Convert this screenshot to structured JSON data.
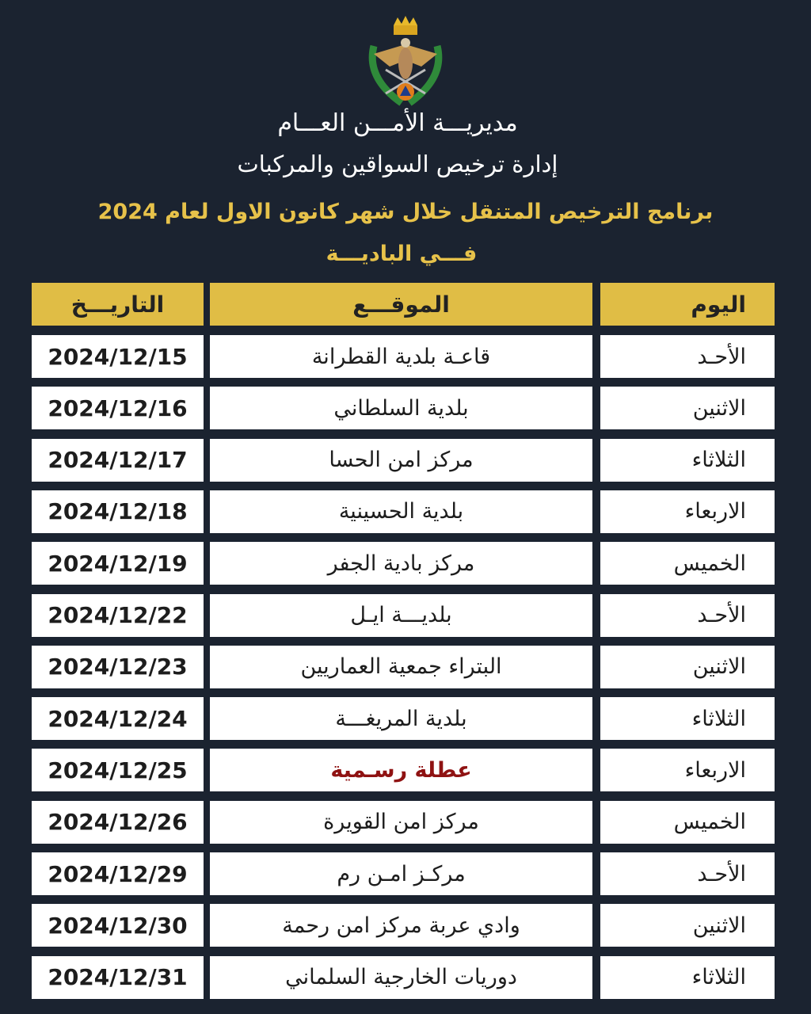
{
  "header": {
    "org": "مديريـــة الأمـــن العـــام",
    "department": "إدارة ترخيص السواقين والمركبات",
    "title": "برنامج الترخيص المتنقل خلال شهر  كانون الاول لعام 2024",
    "subtitle": "فـــي الباديـــة"
  },
  "colors": {
    "background": "#1b2330",
    "header_fill": "#e0bd45",
    "title": "#e7c24a",
    "holiday": "#8f1212"
  },
  "table": {
    "columns": {
      "day": "اليوم",
      "location": "الموقـــع",
      "date": "التاريـــخ"
    },
    "rows": [
      {
        "day": "الأحـد",
        "location": "قاعـة بلدية القطرانة",
        "date": "2024/12/15"
      },
      {
        "day": "الاثنين",
        "location": "بلدية السلطاني",
        "date": "2024/12/16"
      },
      {
        "day": "الثلاثاء",
        "location": "مركز امن الحسا",
        "date": "2024/12/17"
      },
      {
        "day": "الاربعاء",
        "location": "بلدية الحسينية",
        "date": "2024/12/18"
      },
      {
        "day": "الخميس",
        "location": "مركز بادية الجفر",
        "date": "2024/12/19"
      },
      {
        "day": "الأحـد",
        "location": "بلديـــة ايـل",
        "date": "2024/12/22"
      },
      {
        "day": "الاثنين",
        "location": "البتراء جمعية العماريين",
        "date": "2024/12/23"
      },
      {
        "day": "الثلاثاء",
        "location": "بلدية المريغـــة",
        "date": "2024/12/24"
      },
      {
        "day": "الاربعاء",
        "location": "عطلة رسـمية",
        "date": "2024/12/25",
        "holiday": true
      },
      {
        "day": "الخميس",
        "location": "مركز امن القويرة",
        "date": "2024/12/26"
      },
      {
        "day": "الأحـد",
        "location": "مركـز امـن رم",
        "date": "2024/12/29"
      },
      {
        "day": "الاثنين",
        "location": "وادي عربة مركز امن رحمة",
        "date": "2024/12/30"
      },
      {
        "day": "الثلاثاء",
        "location": "دوريات الخارجية السلماني",
        "date": "2024/12/31"
      }
    ]
  }
}
